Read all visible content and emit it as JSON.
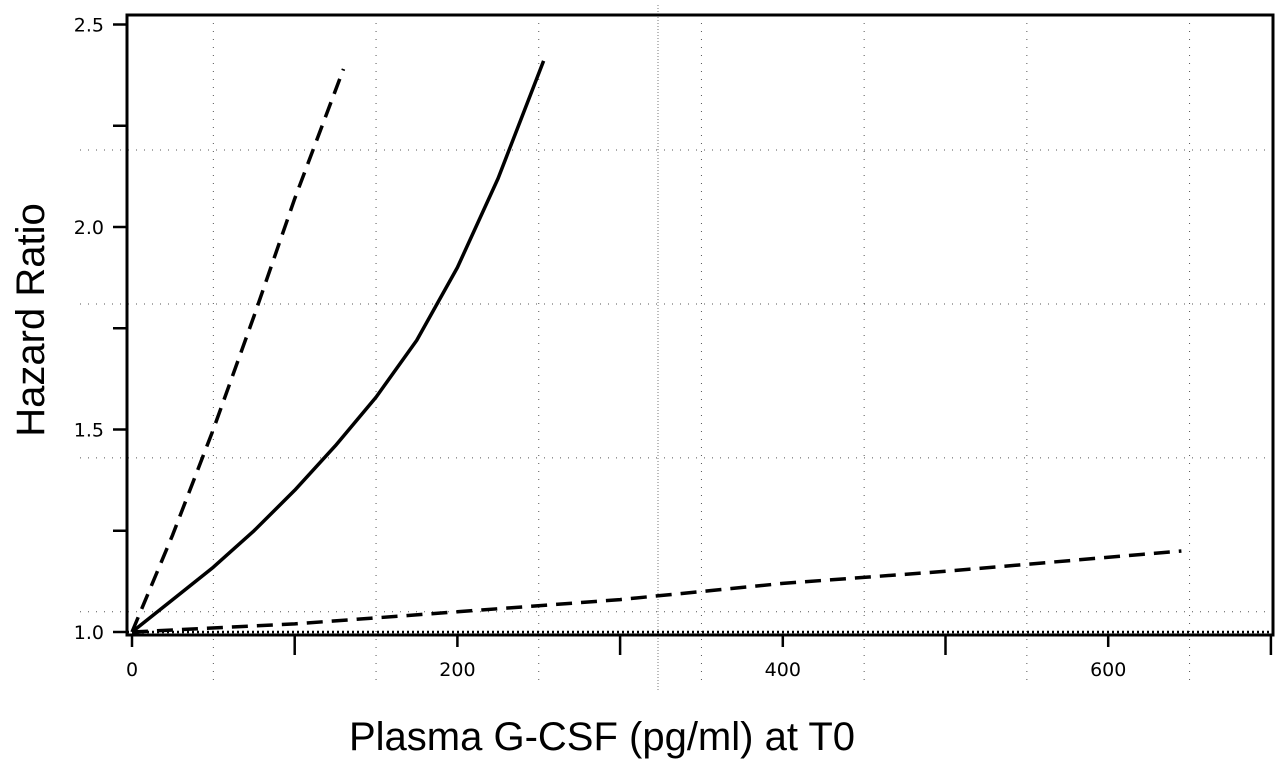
{
  "chart_data": {
    "type": "line",
    "title": "",
    "xlabel": "Plasma G-CSF (pg/ml) at T0",
    "ylabel": "Hazard Ratio",
    "xlim": [
      0,
      700
    ],
    "ylim": [
      1.0,
      2.5
    ],
    "x_ticks": [
      0,
      200,
      400,
      600
    ],
    "x_minor_ticks": [
      100,
      300,
      500,
      700
    ],
    "y_ticks": [
      1.0,
      1.5,
      2.0,
      2.5
    ],
    "y_tick_labels": [
      "1.0",
      "1.5",
      "2.0",
      "2.5"
    ],
    "y_minor_ticks": [
      1.25,
      1.75,
      2.25
    ],
    "x_tick_labels": [
      "0",
      "200",
      "400",
      "600"
    ],
    "grid": true,
    "reference_line": {
      "style": "dotted",
      "y": 1.0
    },
    "series": [
      {
        "style": "solid",
        "x": [
          0,
          25,
          50,
          75,
          100,
          125,
          150,
          175,
          200,
          225,
          253
        ],
        "y": [
          1.0,
          1.08,
          1.16,
          1.25,
          1.35,
          1.46,
          1.58,
          1.72,
          1.9,
          2.12,
          2.41
        ]
      },
      {
        "style": "dashed",
        "x": [
          0,
          25,
          50,
          75,
          100,
          130
        ],
        "y": [
          1.0,
          1.24,
          1.5,
          1.78,
          2.07,
          2.39
        ]
      },
      {
        "style": "dashed",
        "x": [
          0,
          100,
          200,
          300,
          400,
          500,
          645
        ],
        "y": [
          1.0,
          1.02,
          1.05,
          1.08,
          1.12,
          1.15,
          1.2
        ]
      }
    ]
  }
}
